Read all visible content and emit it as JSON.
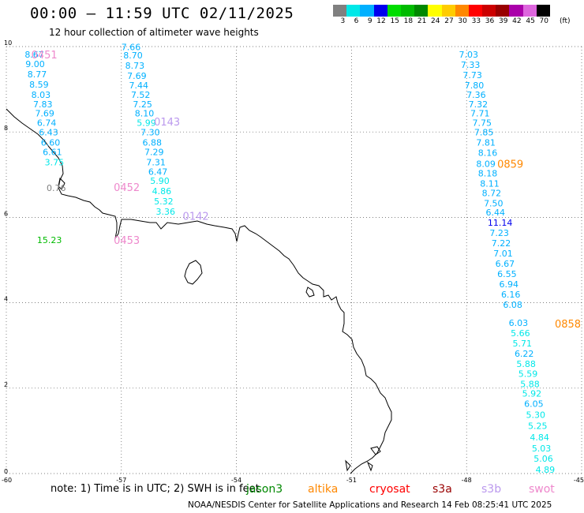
{
  "header": {
    "title": "00:00 – 11:59 UTC 02/11/2025",
    "subtitle": "12 hour collection of altimeter wave heights"
  },
  "legend": {
    "unit": "(ft)",
    "bins": [
      {
        "label": "3",
        "color": "#808080"
      },
      {
        "label": "6",
        "color": "#00e8e8"
      },
      {
        "label": "9",
        "color": "#00b0ff"
      },
      {
        "label": "12",
        "color": "#0000ee"
      },
      {
        "label": "15",
        "color": "#00dd00"
      },
      {
        "label": "18",
        "color": "#00bb00"
      },
      {
        "label": "21",
        "color": "#008800"
      },
      {
        "label": "24",
        "color": "#ffff00"
      },
      {
        "label": "27",
        "color": "#ffcc00"
      },
      {
        "label": "30",
        "color": "#ff8800"
      },
      {
        "label": "33",
        "color": "#ff0000"
      },
      {
        "label": "36",
        "color": "#cc0000"
      },
      {
        "label": "39",
        "color": "#990000"
      },
      {
        "label": "42",
        "color": "#aa00aa"
      },
      {
        "label": "45",
        "color": "#dd66dd"
      },
      {
        "label": "70",
        "color": "#000000"
      }
    ]
  },
  "axes": {
    "x_ticks": [
      "-60",
      "-57",
      "-54",
      "-51",
      "-48",
      "-45"
    ],
    "y_ticks": [
      "0",
      "2",
      "4",
      "6",
      "8",
      "10"
    ]
  },
  "tracks": [
    {
      "name": "west",
      "times": [
        {
          "text": "0451",
          "lon": -59.35,
          "lat": 9.72,
          "color": "#ee88cc"
        },
        {
          "text": "0143",
          "lon": -56.15,
          "lat": 8.15,
          "color": "#bb99ee"
        },
        {
          "text": "0452",
          "lon": -57.2,
          "lat": 6.62,
          "color": "#ee88cc"
        },
        {
          "text": "0142",
          "lon": -55.4,
          "lat": 5.94,
          "color": "#bb99ee"
        },
        {
          "text": "0453",
          "lon": -57.2,
          "lat": 5.38,
          "color": "#ee88cc"
        }
      ],
      "points": [
        {
          "v": "8.67",
          "lon": -59.52,
          "lat": 9.74,
          "color": "#00b0ff"
        },
        {
          "v": "7.66",
          "lon": -57.0,
          "lat": 9.92,
          "color": "#00b0ff"
        },
        {
          "v": "8.70",
          "lon": -56.95,
          "lat": 9.72,
          "color": "#00b0ff"
        },
        {
          "v": "9.00",
          "lon": -59.5,
          "lat": 9.52,
          "color": "#00b0ff"
        },
        {
          "v": "8.73",
          "lon": -56.9,
          "lat": 9.48,
          "color": "#00b0ff"
        },
        {
          "v": "8.77",
          "lon": -59.45,
          "lat": 9.28,
          "color": "#00b0ff"
        },
        {
          "v": "7.69",
          "lon": -56.85,
          "lat": 9.24,
          "color": "#00b0ff"
        },
        {
          "v": "8.59",
          "lon": -59.4,
          "lat": 9.04,
          "color": "#00b0ff"
        },
        {
          "v": "7.44",
          "lon": -56.8,
          "lat": 9.02,
          "color": "#00b0ff"
        },
        {
          "v": "8.03",
          "lon": -59.35,
          "lat": 8.8,
          "color": "#00b0ff"
        },
        {
          "v": "7.52",
          "lon": -56.75,
          "lat": 8.8,
          "color": "#00b0ff"
        },
        {
          "v": "7.83",
          "lon": -59.3,
          "lat": 8.58,
          "color": "#00b0ff"
        },
        {
          "v": "7.25",
          "lon": -56.7,
          "lat": 8.58,
          "color": "#00b0ff"
        },
        {
          "v": "7.69",
          "lon": -59.25,
          "lat": 8.36,
          "color": "#00b0ff"
        },
        {
          "v": "8.10",
          "lon": -56.65,
          "lat": 8.36,
          "color": "#00b0ff"
        },
        {
          "v": "6.74",
          "lon": -59.2,
          "lat": 8.14,
          "color": "#00b0ff"
        },
        {
          "v": "5.99",
          "lon": -56.6,
          "lat": 8.14,
          "color": "#00e8e8"
        },
        {
          "v": "6.43",
          "lon": -59.15,
          "lat": 7.92,
          "color": "#00b0ff"
        },
        {
          "v": "7.30",
          "lon": -56.5,
          "lat": 7.92,
          "color": "#00b0ff"
        },
        {
          "v": "6.60",
          "lon": -59.1,
          "lat": 7.68,
          "color": "#00b0ff"
        },
        {
          "v": "6.88",
          "lon": -56.45,
          "lat": 7.68,
          "color": "#00b0ff"
        },
        {
          "v": "6.61",
          "lon": -59.05,
          "lat": 7.46,
          "color": "#00b0ff"
        },
        {
          "v": "7.29",
          "lon": -56.4,
          "lat": 7.46,
          "color": "#00b0ff"
        },
        {
          "v": "3.75",
          "lon": -59.0,
          "lat": 7.22,
          "color": "#00e8e8"
        },
        {
          "v": "7.31",
          "lon": -56.35,
          "lat": 7.22,
          "color": "#00b0ff"
        },
        {
          "v": "6.47",
          "lon": -56.3,
          "lat": 7.0,
          "color": "#00b0ff"
        },
        {
          "v": "0.76",
          "lon": -58.95,
          "lat": 6.62,
          "color": "#808080"
        },
        {
          "v": "5.90",
          "lon": -56.25,
          "lat": 6.78,
          "color": "#00e8e8"
        },
        {
          "v": "4.86",
          "lon": -56.2,
          "lat": 6.54,
          "color": "#00e8e8"
        },
        {
          "v": "5.32",
          "lon": -56.15,
          "lat": 6.3,
          "color": "#00e8e8"
        },
        {
          "v": "3.36",
          "lon": -56.1,
          "lat": 6.06,
          "color": "#00e8e8"
        },
        {
          "v": "15.23",
          "lon": -59.2,
          "lat": 5.4,
          "color": "#00bb00"
        }
      ]
    },
    {
      "name": "east",
      "times": [
        {
          "text": "0859",
          "lon": -47.2,
          "lat": 7.16,
          "color": "#ff8800"
        },
        {
          "text": "0858",
          "lon": -45.7,
          "lat": 3.42,
          "color": "#ff8800"
        }
      ],
      "points": [
        {
          "v": "7.03",
          "lon": -48.2,
          "lat": 9.74,
          "color": "#00b0ff"
        },
        {
          "v": "7.33",
          "lon": -48.15,
          "lat": 9.5,
          "color": "#00b0ff"
        },
        {
          "v": "7.73",
          "lon": -48.1,
          "lat": 9.26,
          "color": "#00b0ff"
        },
        {
          "v": "7.80",
          "lon": -48.05,
          "lat": 9.02,
          "color": "#00b0ff"
        },
        {
          "v": "7.36",
          "lon": -48.0,
          "lat": 8.8,
          "color": "#00b0ff"
        },
        {
          "v": "7.32",
          "lon": -47.95,
          "lat": 8.58,
          "color": "#00b0ff"
        },
        {
          "v": "7.71",
          "lon": -47.9,
          "lat": 8.36,
          "color": "#00b0ff"
        },
        {
          "v": "7.75",
          "lon": -47.85,
          "lat": 8.14,
          "color": "#00b0ff"
        },
        {
          "v": "7.85",
          "lon": -47.8,
          "lat": 7.92,
          "color": "#00b0ff"
        },
        {
          "v": "7.81",
          "lon": -47.75,
          "lat": 7.68,
          "color": "#00b0ff"
        },
        {
          "v": "8.16",
          "lon": -47.7,
          "lat": 7.44,
          "color": "#00b0ff"
        },
        {
          "v": "8.09",
          "lon": -47.75,
          "lat": 7.18,
          "color": "#00b0ff"
        },
        {
          "v": "8.18",
          "lon": -47.7,
          "lat": 6.96,
          "color": "#00b0ff"
        },
        {
          "v": "8.11",
          "lon": -47.65,
          "lat": 6.72,
          "color": "#00b0ff"
        },
        {
          "v": "8.72",
          "lon": -47.6,
          "lat": 6.5,
          "color": "#00b0ff"
        },
        {
          "v": "7.50",
          "lon": -47.55,
          "lat": 6.26,
          "color": "#00b0ff"
        },
        {
          "v": "6.44",
          "lon": -47.5,
          "lat": 6.04,
          "color": "#00b0ff"
        },
        {
          "v": "11.14",
          "lon": -47.45,
          "lat": 5.8,
          "color": "#0000ee"
        },
        {
          "v": "7.23",
          "lon": -47.4,
          "lat": 5.56,
          "color": "#00b0ff"
        },
        {
          "v": "7.22",
          "lon": -47.35,
          "lat": 5.32,
          "color": "#00b0ff"
        },
        {
          "v": "7.01",
          "lon": -47.3,
          "lat": 5.08,
          "color": "#00b0ff"
        },
        {
          "v": "6.67",
          "lon": -47.25,
          "lat": 4.84,
          "color": "#00b0ff"
        },
        {
          "v": "6.55",
          "lon": -47.2,
          "lat": 4.6,
          "color": "#00b0ff"
        },
        {
          "v": "6.94",
          "lon": -47.15,
          "lat": 4.36,
          "color": "#00b0ff"
        },
        {
          "v": "6.16",
          "lon": -47.1,
          "lat": 4.12,
          "color": "#00b0ff"
        },
        {
          "v": "6.08",
          "lon": -47.05,
          "lat": 3.88,
          "color": "#00b0ff"
        },
        {
          "v": "6.03",
          "lon": -46.9,
          "lat": 3.46,
          "color": "#00b0ff"
        },
        {
          "v": "5.66",
          "lon": -46.85,
          "lat": 3.22,
          "color": "#00e8e8"
        },
        {
          "v": "5.71",
          "lon": -46.8,
          "lat": 2.98,
          "color": "#00e8e8"
        },
        {
          "v": "6.22",
          "lon": -46.75,
          "lat": 2.74,
          "color": "#00b0ff"
        },
        {
          "v": "5.88",
          "lon": -46.7,
          "lat": 2.5,
          "color": "#00e8e8"
        },
        {
          "v": "5.59",
          "lon": -46.65,
          "lat": 2.26,
          "color": "#00e8e8"
        },
        {
          "v": "5.88",
          "lon": -46.6,
          "lat": 2.02,
          "color": "#00e8e8"
        },
        {
          "v": "5.92",
          "lon": -46.55,
          "lat": 1.8,
          "color": "#00e8e8"
        },
        {
          "v": "6.05",
          "lon": -46.5,
          "lat": 1.56,
          "color": "#00b0ff"
        },
        {
          "v": "5.30",
          "lon": -46.45,
          "lat": 1.3,
          "color": "#00e8e8"
        },
        {
          "v": "5.25",
          "lon": -46.4,
          "lat": 1.04,
          "color": "#00e8e8"
        },
        {
          "v": "4.84",
          "lon": -46.35,
          "lat": 0.78,
          "color": "#00e8e8"
        },
        {
          "v": "5.03",
          "lon": -46.3,
          "lat": 0.52,
          "color": "#00e8e8"
        },
        {
          "v": "5.06",
          "lon": -46.25,
          "lat": 0.28,
          "color": "#00e8e8"
        },
        {
          "v": "4.89",
          "lon": -46.2,
          "lat": 0.02,
          "color": "#00e8e8"
        }
      ]
    }
  ],
  "footer": {
    "note": "note: 1) Time is in UTC; 2) SWH is in feet",
    "missions": [
      {
        "name": "jason3",
        "color": "#008800"
      },
      {
        "name": "altika",
        "color": "#ff8800"
      },
      {
        "name": "cryosat",
        "color": "#ff0000"
      },
      {
        "name": "s3a",
        "color": "#990000"
      },
      {
        "name": "s3b",
        "color": "#bb99ee"
      },
      {
        "name": "swot",
        "color": "#ee88cc"
      }
    ],
    "credit": "NOAA/NESDIS Center for Satellite Applications and Research    14 Feb 08:25:41 UTC 2025"
  }
}
